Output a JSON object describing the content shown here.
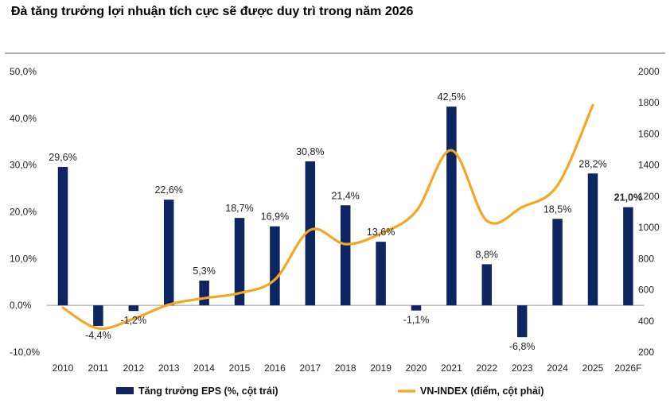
{
  "title": "Đà tăng trưởng lợi nhuận tích cực sẽ được duy trì trong năm 2026",
  "chart_data": {
    "type": "bar+line",
    "categories": [
      "2010",
      "2011",
      "2012",
      "2013",
      "2014",
      "2015",
      "2016",
      "2017",
      "2018",
      "2019",
      "2020",
      "2021",
      "2022",
      "2023",
      "2024",
      "2025",
      "2026F"
    ],
    "series": [
      {
        "name": "Tăng trưởng EPS (%, cột trái)",
        "type": "bar",
        "axis": "left",
        "color": "#0d2560",
        "values": [
          29.6,
          -4.4,
          -1.2,
          22.6,
          5.3,
          18.7,
          16.9,
          30.8,
          21.4,
          13.6,
          -1.1,
          42.5,
          8.8,
          -6.8,
          18.5,
          28.2,
          21.0
        ],
        "labels": [
          "29,6%",
          "-4,4%",
          "-1,2%",
          "22,6%",
          "5,3%",
          "18,7%",
          "16,9%",
          "30,8%",
          "21,4%",
          "13,6%",
          "-1,1%",
          "42,5%",
          "8,8%",
          "-6,8%",
          "18,5%",
          "28,2%",
          "21,0%"
        ],
        "bold_label_index": 16
      },
      {
        "name": "VN-INDEX (điểm, cột phải)",
        "type": "line",
        "axis": "right",
        "color": "#f5a623",
        "values": [
          485,
          352,
          414,
          505,
          546,
          579,
          665,
          984,
          893,
          961,
          1104,
          1495,
          1043,
          1130,
          1270,
          1784,
          null
        ]
      }
    ],
    "y_left": {
      "min": -10,
      "max": 50,
      "step": 10,
      "tick_labels": [
        "-10,0%",
        "0,0%",
        "10,0%",
        "20,0%",
        "30,0%",
        "40,0%",
        "50,0%"
      ]
    },
    "y_right": {
      "min": 200,
      "max": 2000,
      "step": 200,
      "tick_labels": [
        "200",
        "400",
        "600",
        "800",
        "1000",
        "1200",
        "1400",
        "1600",
        "1800",
        "2000"
      ]
    },
    "legend": {
      "placement": "bottom"
    },
    "grid": false
  }
}
